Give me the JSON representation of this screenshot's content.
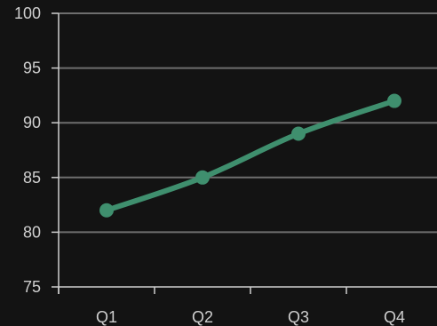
{
  "chart_data": {
    "type": "line",
    "categories": [
      "Q1",
      "Q2",
      "Q3",
      "Q4"
    ],
    "series": [
      {
        "values": [
          82,
          85,
          89,
          92
        ]
      }
    ],
    "y_ticks": [
      "75",
      "80",
      "85",
      "90",
      "95",
      "100"
    ],
    "ylim": [
      75,
      100
    ],
    "grid": true,
    "colors": {
      "background": "#131313",
      "line": "#3f8f6e",
      "grid": "#6e6e6e",
      "axis": "#cfcfcf",
      "text": "#cfcfcf"
    }
  }
}
